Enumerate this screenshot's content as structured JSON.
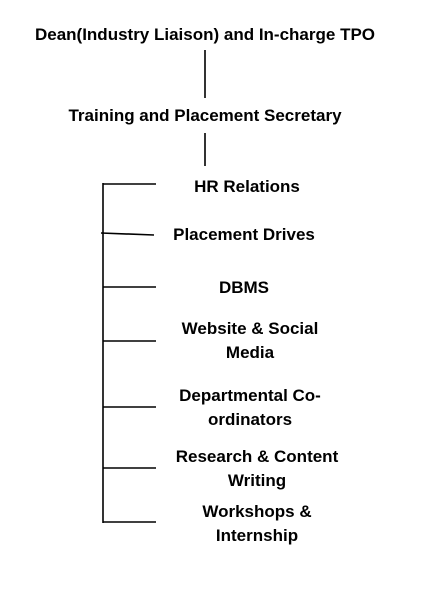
{
  "diagram": {
    "root": "Dean(Industry Liaison) and In-charge TPO",
    "secretary": "Training and Placement Secretary",
    "branches": [
      "HR Relations",
      "Placement Drives",
      "DBMS",
      "Website & Social\nMedia",
      "Departmental Co-\nordinators",
      "Research & Content\nWriting",
      "Workshops &\nInternship"
    ]
  },
  "colors": {
    "line": "#000000",
    "text": "#000000",
    "background": "#ffffff"
  }
}
